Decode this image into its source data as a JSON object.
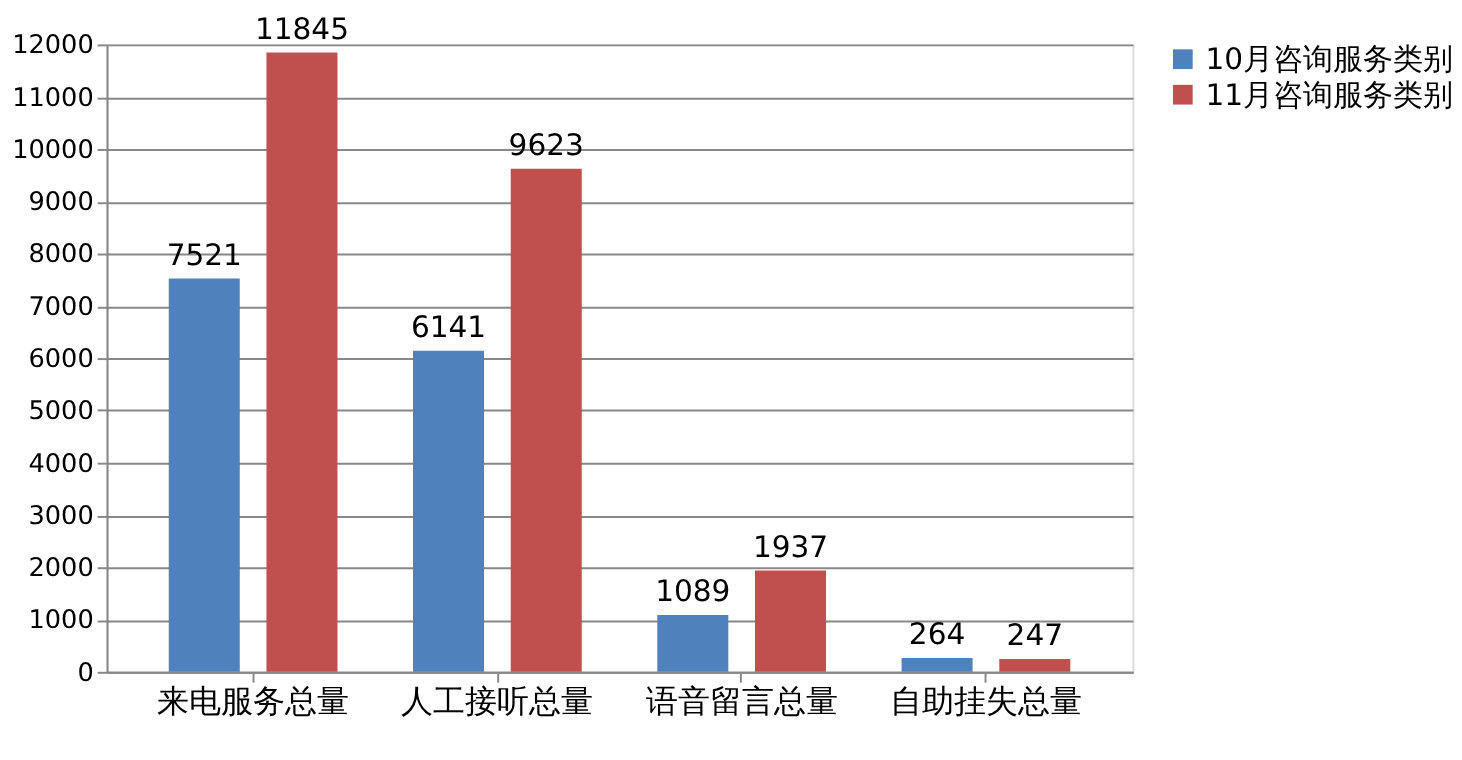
{
  "chart_data": {
    "type": "bar",
    "categories": [
      "来电服务总量",
      "人工接听总量",
      "语音留言总量",
      "自助挂失总量"
    ],
    "series": [
      {
        "name": "10月咨询服务类别",
        "color": "#4f81bd",
        "values": [
          7521,
          6141,
          1089,
          264
        ]
      },
      {
        "name": "11月咨询服务类别",
        "color": "#c0504d",
        "values": [
          11845,
          9623,
          1937,
          247
        ]
      }
    ],
    "ylim": [
      0,
      12000
    ],
    "yticks": [
      0,
      1000,
      2000,
      3000,
      4000,
      5000,
      6000,
      7000,
      8000,
      9000,
      10000,
      11000,
      12000
    ],
    "grid": "y",
    "legend": "right",
    "data_labels": true
  }
}
